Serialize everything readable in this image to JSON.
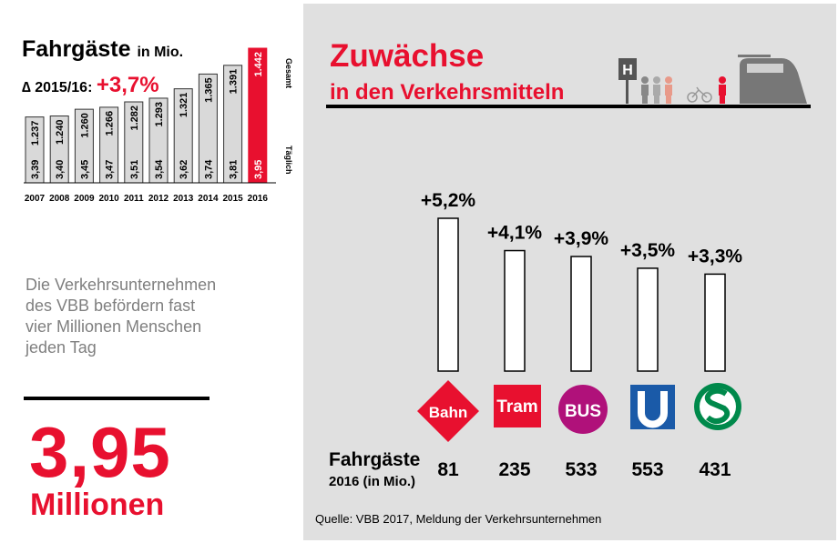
{
  "left": {
    "title": "Fahrgäste",
    "title_unit": "in Mio.",
    "delta_label": "∆ 2015/16:",
    "delta_value": "+3,7%",
    "legend_total": "Gesamt",
    "legend_daily": "Täglich",
    "description": "Die Verkehrsunternehmen des VBB befördern fast vier Millionen Menschen jeden Tag",
    "big_number": "3,95",
    "big_unit": "Millionen"
  },
  "right": {
    "title_line1": "Zuwächse",
    "title_line2": "in den Verkehrsmitteln",
    "passengers_label": "Fahrgäste",
    "passengers_sub": "2016 (in Mio.)",
    "source": "Quelle: VBB 2017, Meldung der Verkehrsunternehmen"
  },
  "colors": {
    "accent": "#e8102f",
    "tram": "#e8102f",
    "bus": "#b0117a",
    "ubahn": "#1a5aa8",
    "sbahn": "#00894b",
    "bar_fill": "#d9d9d9"
  },
  "icons": [
    "bus-stop-sign-icon",
    "people-icon",
    "bicycle-icon",
    "tram-icon"
  ],
  "chart_data": [
    {
      "type": "bar",
      "categories": [
        "2007",
        "2008",
        "2009",
        "2010",
        "2011",
        "2012",
        "2013",
        "2014",
        "2015",
        "2016"
      ],
      "series": [
        {
          "name": "Gesamt",
          "values": [
            1237,
            1240,
            1260,
            1266,
            1282,
            1293,
            1321,
            1365,
            1391,
            1442
          ],
          "labels": [
            "1.237",
            "1.240",
            "1.260",
            "1.266",
            "1.282",
            "1.293",
            "1.321",
            "1.365",
            "1.391",
            "1.442"
          ]
        },
        {
          "name": "Täglich",
          "values": [
            3.39,
            3.4,
            3.45,
            3.47,
            3.51,
            3.54,
            3.62,
            3.74,
            3.81,
            3.95
          ],
          "labels": [
            "3,39",
            "3,40",
            "3,45",
            "3,47",
            "3,51",
            "3,54",
            "3,62",
            "3,74",
            "3,81",
            "3,95"
          ]
        }
      ],
      "highlight_last": true
    },
    {
      "type": "bar",
      "categories": [
        "Bahn",
        "Tram",
        "BUS",
        "U",
        "S"
      ],
      "growth": [
        5.2,
        4.1,
        3.9,
        3.5,
        3.3
      ],
      "growth_labels": [
        "+5,2%",
        "+4,1%",
        "+3,9%",
        "+3,5%",
        "+3,3%"
      ],
      "passengers": [
        "81",
        "235",
        "533",
        "553",
        "431"
      ]
    }
  ]
}
